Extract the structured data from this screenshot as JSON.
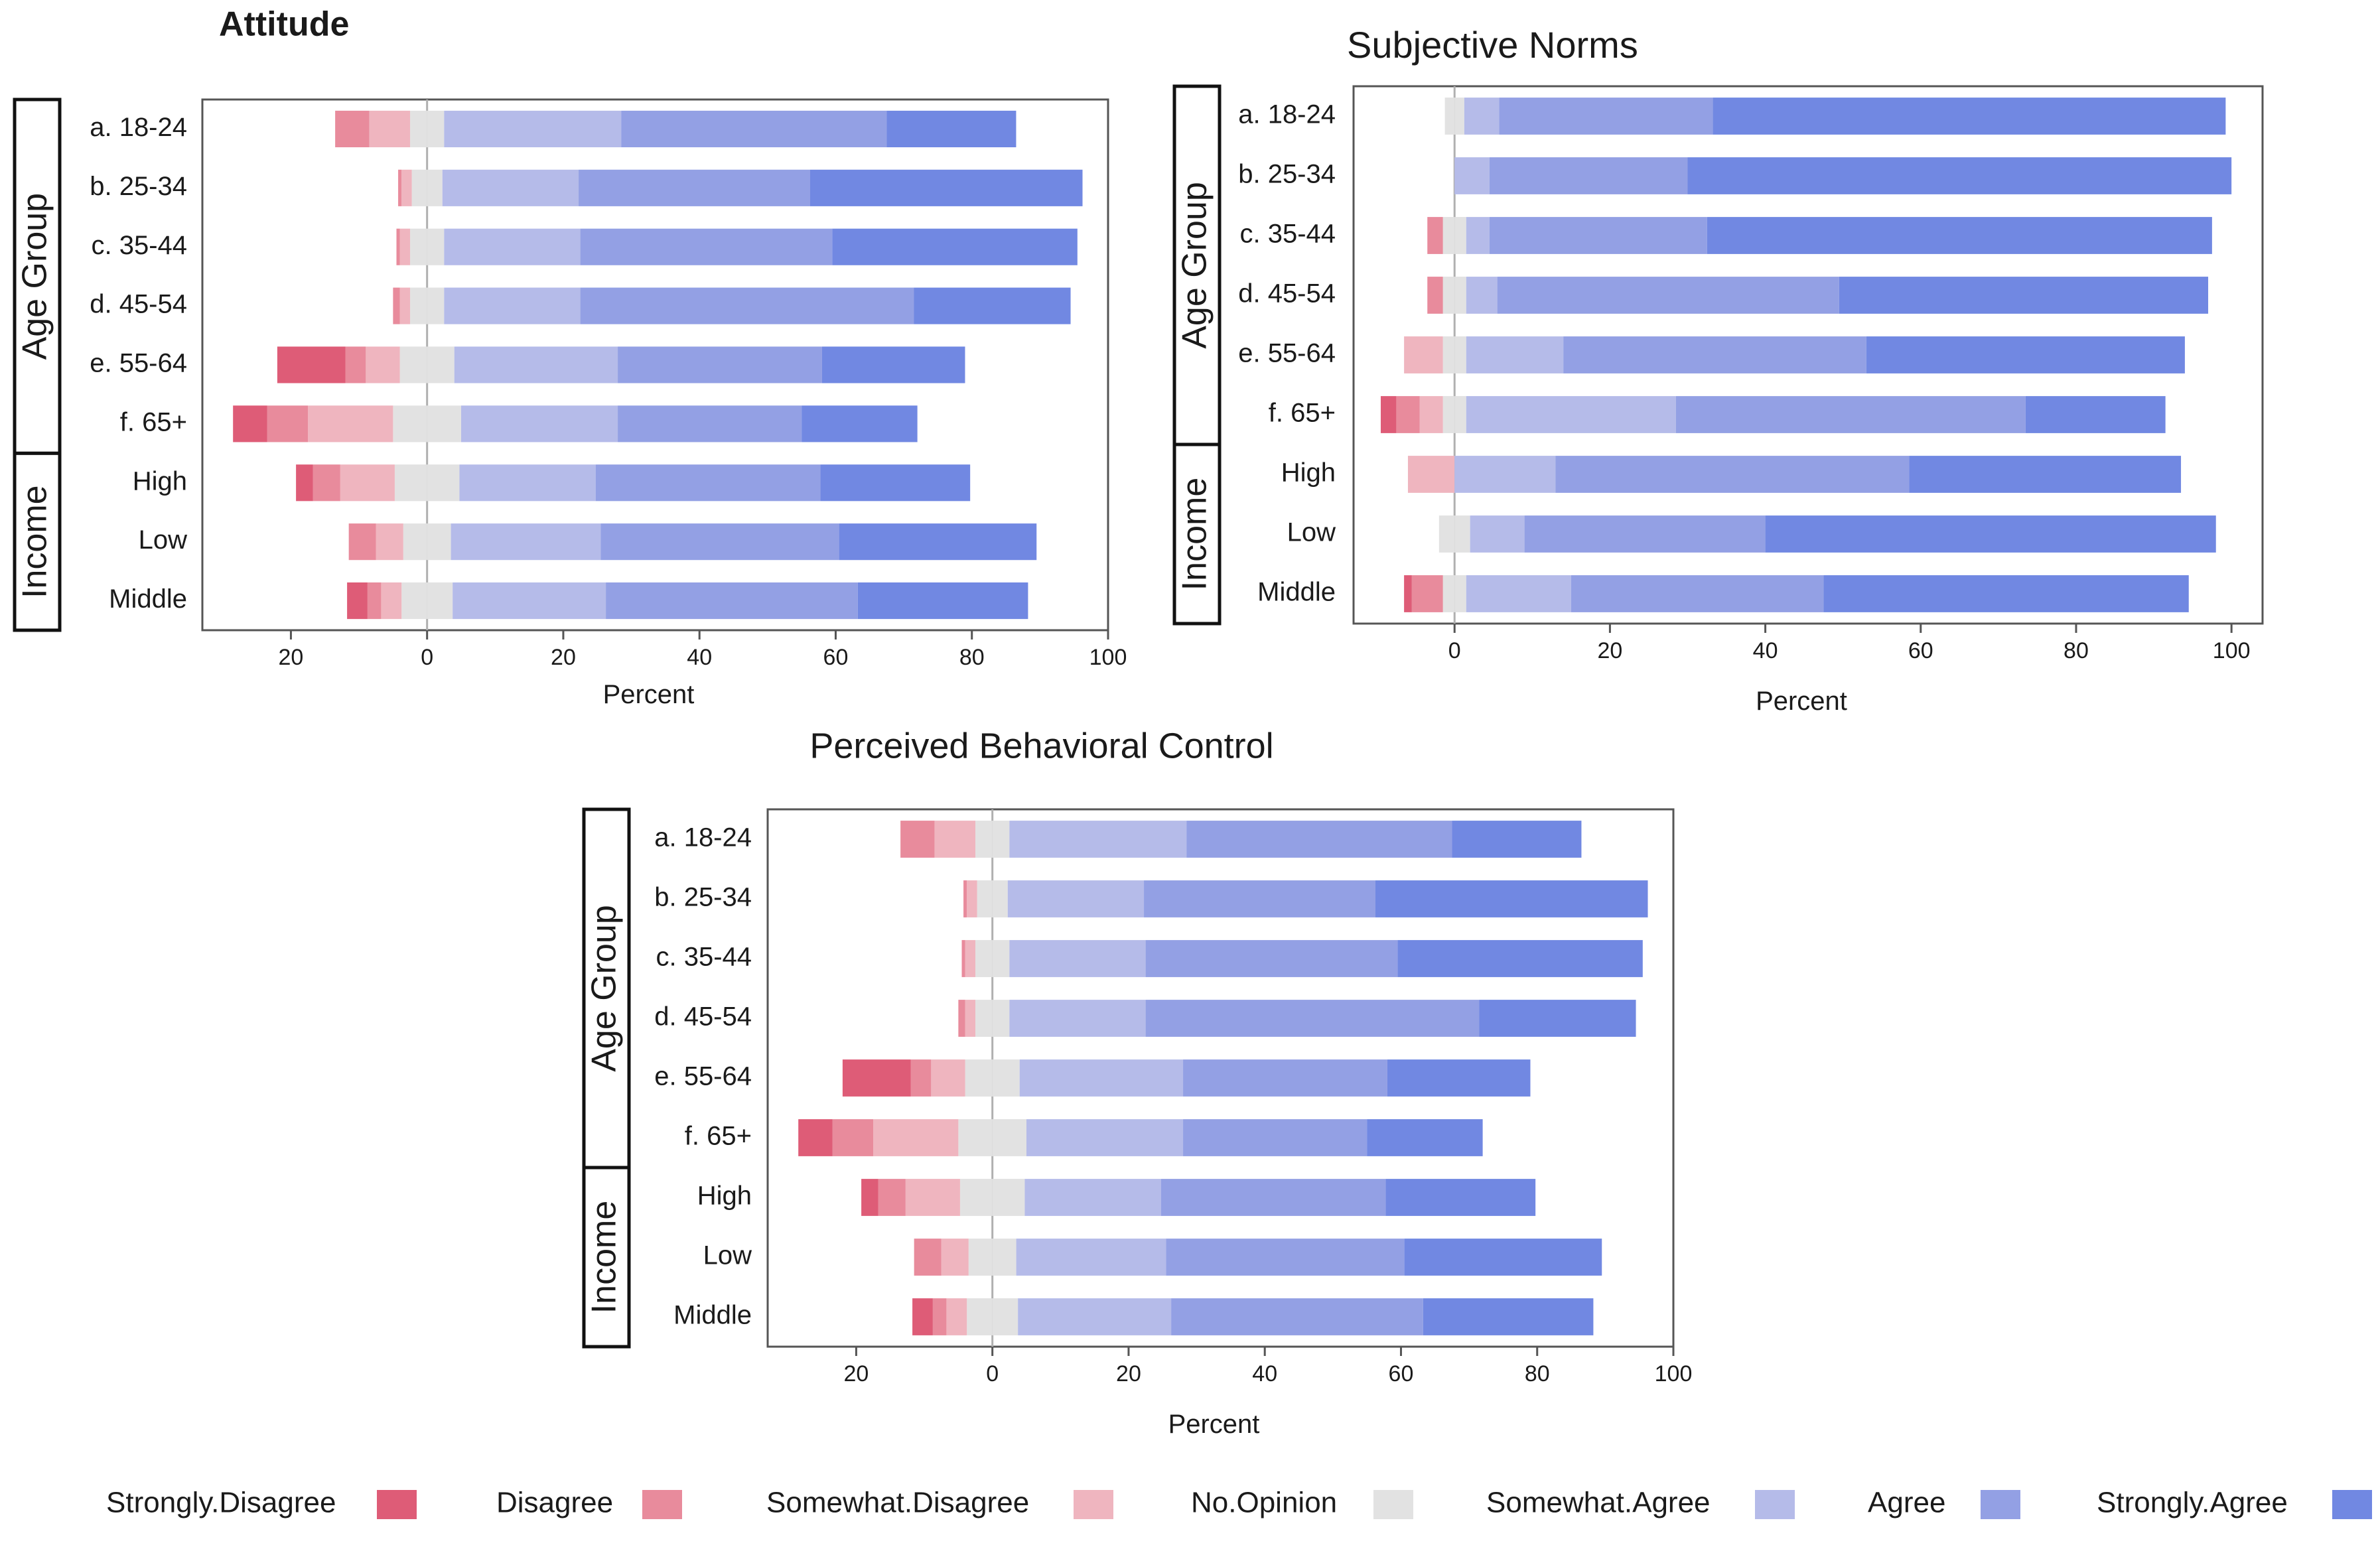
{
  "colors": {
    "Strongly.Disagree": "#de5c77",
    "Disagree": "#e88b9c",
    "Somewhat.Disagree": "#efb5bf",
    "No.Opinion": "#e2e2e2",
    "Somewhat.Agree": "#b5bbe9",
    "Agree": "#93a0e4",
    "Strongly.Agree": "#7188e2"
  },
  "legend": {
    "placement": "bottom",
    "items": [
      {
        "label": "Strongly.Disagree",
        "key": "Strongly.Disagree"
      },
      {
        "label": "Disagree",
        "key": "Disagree"
      },
      {
        "label": "Somewhat.Disagree",
        "key": "Somewhat.Disagree"
      },
      {
        "label": "No.Opinion",
        "key": "No.Opinion"
      },
      {
        "label": "Somewhat.Agree",
        "key": "Somewhat.Agree"
      },
      {
        "label": "Agree",
        "key": "Agree"
      },
      {
        "label": "Strongly.Agree",
        "key": "Strongly.Agree"
      }
    ]
  },
  "chart_data": [
    {
      "type": "bar",
      "orientation": "horizontal-diverging-stacked",
      "title": "Attitude",
      "xlabel": "Percent",
      "xlim": [
        -33,
        100
      ],
      "xticks": [
        -20,
        0,
        20,
        40,
        60,
        80,
        100
      ],
      "xtick_labels": [
        "20",
        "0",
        "20",
        "40",
        "60",
        "80",
        "100"
      ],
      "categories": [
        "a. 18-24",
        "b. 25-34",
        "c. 35-44",
        "d. 45-54",
        "e. 55-64",
        "f. 65+",
        "High",
        "Low",
        "Middle"
      ],
      "groups": [
        {
          "label": "Age Group",
          "count": 6
        },
        {
          "label": "Income",
          "count": 3
        }
      ],
      "series": [
        {
          "name": "Strongly.Disagree",
          "values": [
            0,
            0,
            0,
            0,
            10,
            5,
            2.5,
            0,
            3
          ]
        },
        {
          "name": "Disagree",
          "values": [
            5,
            0.5,
            0.5,
            1,
            3,
            6,
            4,
            4,
            2
          ]
        },
        {
          "name": "Somewhat.Disagree",
          "values": [
            6,
            1.5,
            1.5,
            1.5,
            5,
            12.5,
            8,
            4,
            3
          ]
        },
        {
          "name": "No.Opinion",
          "values": [
            5,
            4.5,
            5,
            5,
            8,
            10,
            9.5,
            7,
            7.5
          ]
        },
        {
          "name": "Somewhat.Agree",
          "values": [
            26,
            20,
            20,
            20,
            24,
            23,
            20,
            22,
            22.5
          ]
        },
        {
          "name": "Agree",
          "values": [
            39,
            34,
            37,
            49,
            30,
            27,
            33,
            35,
            37
          ]
        },
        {
          "name": "Strongly.Agree",
          "values": [
            19,
            40,
            36,
            23,
            21,
            17,
            22,
            29,
            25
          ]
        }
      ]
    },
    {
      "type": "bar",
      "orientation": "horizontal-diverging-stacked",
      "title": "Subjective Norms",
      "xlabel": "Percent",
      "xlim": [
        -13,
        104
      ],
      "xticks": [
        0,
        20,
        40,
        60,
        80,
        100
      ],
      "xtick_labels": [
        "0",
        "20",
        "40",
        "60",
        "80",
        "100"
      ],
      "categories": [
        "a. 18-24",
        "b. 25-34",
        "c. 35-44",
        "d. 45-54",
        "e. 55-64",
        "f. 65+",
        "High",
        "Low",
        "Middle"
      ],
      "groups": [
        {
          "label": "Age Group",
          "count": 6
        },
        {
          "label": "Income",
          "count": 3
        }
      ],
      "series": [
        {
          "name": "Strongly.Disagree",
          "values": [
            0,
            0,
            0,
            0,
            0,
            2,
            0,
            0,
            1
          ]
        },
        {
          "name": "Disagree",
          "values": [
            0,
            0,
            2,
            2,
            0,
            3,
            0,
            0,
            4
          ]
        },
        {
          "name": "Somewhat.Disagree",
          "values": [
            0,
            0,
            0,
            0,
            5,
            3,
            6,
            0,
            0
          ]
        },
        {
          "name": "No.Opinion",
          "values": [
            2.5,
            0,
            3,
            3,
            3,
            3,
            0,
            4,
            3
          ]
        },
        {
          "name": "Somewhat.Agree",
          "values": [
            4.5,
            4.5,
            3,
            4,
            12.5,
            27,
            13,
            7,
            13.5
          ]
        },
        {
          "name": "Agree",
          "values": [
            27.5,
            25.5,
            28,
            44,
            39,
            45,
            45.5,
            31,
            32.5
          ]
        },
        {
          "name": "Strongly.Agree",
          "values": [
            66,
            70,
            65,
            47.5,
            41,
            18,
            35,
            58,
            47
          ]
        }
      ]
    },
    {
      "type": "bar",
      "orientation": "horizontal-diverging-stacked",
      "title": "Perceived Behavioral Control",
      "xlabel": "Percent",
      "xlim": [
        -33,
        100
      ],
      "xticks": [
        -20,
        0,
        20,
        40,
        60,
        80,
        100
      ],
      "xtick_labels": [
        "20",
        "0",
        "20",
        "40",
        "60",
        "80",
        "100"
      ],
      "categories": [
        "a. 18-24",
        "b. 25-34",
        "c. 35-44",
        "d. 45-54",
        "e. 55-64",
        "f. 65+",
        "High",
        "Low",
        "Middle"
      ],
      "groups": [
        {
          "label": "Age Group",
          "count": 6
        },
        {
          "label": "Income",
          "count": 3
        }
      ],
      "series": [
        {
          "name": "Strongly.Disagree",
          "values": [
            0,
            0,
            0,
            0,
            10,
            5,
            2.5,
            0,
            3
          ]
        },
        {
          "name": "Disagree",
          "values": [
            5,
            0.5,
            0.5,
            1,
            3,
            6,
            4,
            4,
            2
          ]
        },
        {
          "name": "Somewhat.Disagree",
          "values": [
            6,
            1.5,
            1.5,
            1.5,
            5,
            12.5,
            8,
            4,
            3
          ]
        },
        {
          "name": "No.Opinion",
          "values": [
            5,
            4.5,
            5,
            5,
            8,
            10,
            9.5,
            7,
            7.5
          ]
        },
        {
          "name": "Somewhat.Agree",
          "values": [
            26,
            20,
            20,
            20,
            24,
            23,
            20,
            22,
            22.5
          ]
        },
        {
          "name": "Agree",
          "values": [
            39,
            34,
            37,
            49,
            30,
            27,
            33,
            35,
            37
          ]
        },
        {
          "name": "Strongly.Agree",
          "values": [
            19,
            40,
            36,
            23,
            21,
            17,
            22,
            29,
            25
          ]
        }
      ]
    }
  ]
}
